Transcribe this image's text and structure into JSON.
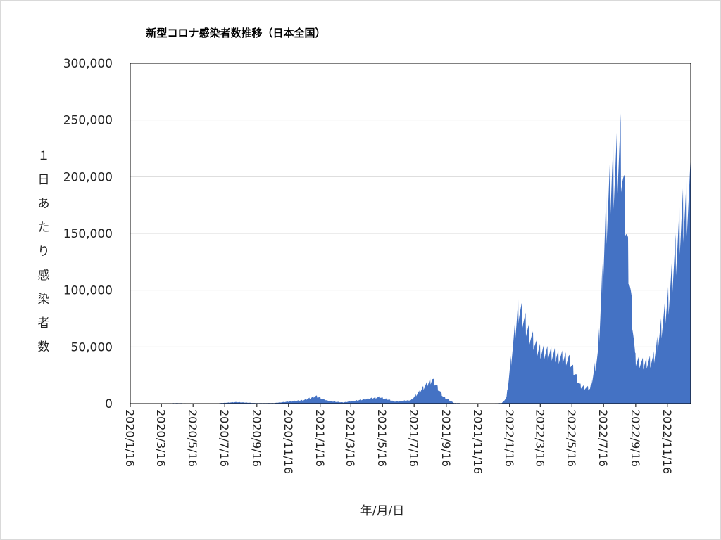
{
  "chart_data": {
    "type": "area",
    "title": "新型コロナ感染者数推移（日本全国）",
    "xlabel": "年/月/日",
    "ylabel": "１日あたり感染者数",
    "ylim": [
      0,
      300000
    ],
    "yticks": [
      "0",
      "50,000",
      "100,000",
      "150,000",
      "200,000",
      "250,000",
      "300,000"
    ],
    "ytick_values": [
      0,
      50000,
      100000,
      150000,
      200000,
      250000,
      300000
    ],
    "xlim": [
      "2020-01-16",
      "2022-12-31"
    ],
    "xticks": [
      "2020/1/16",
      "2020/3/16",
      "2020/5/16",
      "2020/7/16",
      "2020/9/16",
      "2020/11/16",
      "2021/1/16",
      "2021/3/16",
      "2021/5/16",
      "2021/7/16",
      "2021/9/16",
      "2021/11/16",
      "2022/1/16",
      "2022/3/16",
      "2022/5/16",
      "2022/7/16",
      "2022/9/16",
      "2022/11/16"
    ],
    "grid": true,
    "legend": "none",
    "color": "#4472C4",
    "series": [
      {
        "x": [
          "2020-01-16",
          "2020-03-01",
          "2020-04-15",
          "2020-05-30",
          "2020-07-01",
          "2020-08-07",
          "2020-09-15",
          "2020-10-20",
          "2020-11-16",
          "2020-12-15",
          "2021-01-08",
          "2021-02-01",
          "2021-03-01",
          "2021-04-01",
          "2021-05-10",
          "2021-06-10",
          "2021-07-10",
          "2021-08-01",
          "2021-08-20",
          "2021-09-10",
          "2021-10-01",
          "2021-11-01",
          "2021-12-01",
          "2022-01-01",
          "2022-01-10",
          "2022-01-20",
          "2022-02-03",
          "2022-02-20",
          "2022-03-10",
          "2022-04-10",
          "2022-05-10",
          "2022-06-01",
          "2022-06-20",
          "2022-07-05",
          "2022-07-20",
          "2022-08-01",
          "2022-08-18",
          "2022-09-01",
          "2022-09-15",
          "2022-10-01",
          "2022-10-20",
          "2022-11-16",
          "2022-12-01",
          "2022-12-15",
          "2022-12-31"
        ],
        "y": [
          10,
          50,
          500,
          50,
          300,
          1500,
          500,
          600,
          2000,
          3500,
          7500,
          2500,
          1200,
          3500,
          6500,
          2000,
          3500,
          15000,
          25000,
          7000,
          600,
          150,
          150,
          500,
          6000,
          50000,
          98000,
          75000,
          55000,
          50000,
          45000,
          18000,
          15000,
          50000,
          180000,
          230000,
          260000,
          150000,
          45000,
          40000,
          45000,
          100000,
          150000,
          190000,
          215000
        ]
      }
    ]
  }
}
